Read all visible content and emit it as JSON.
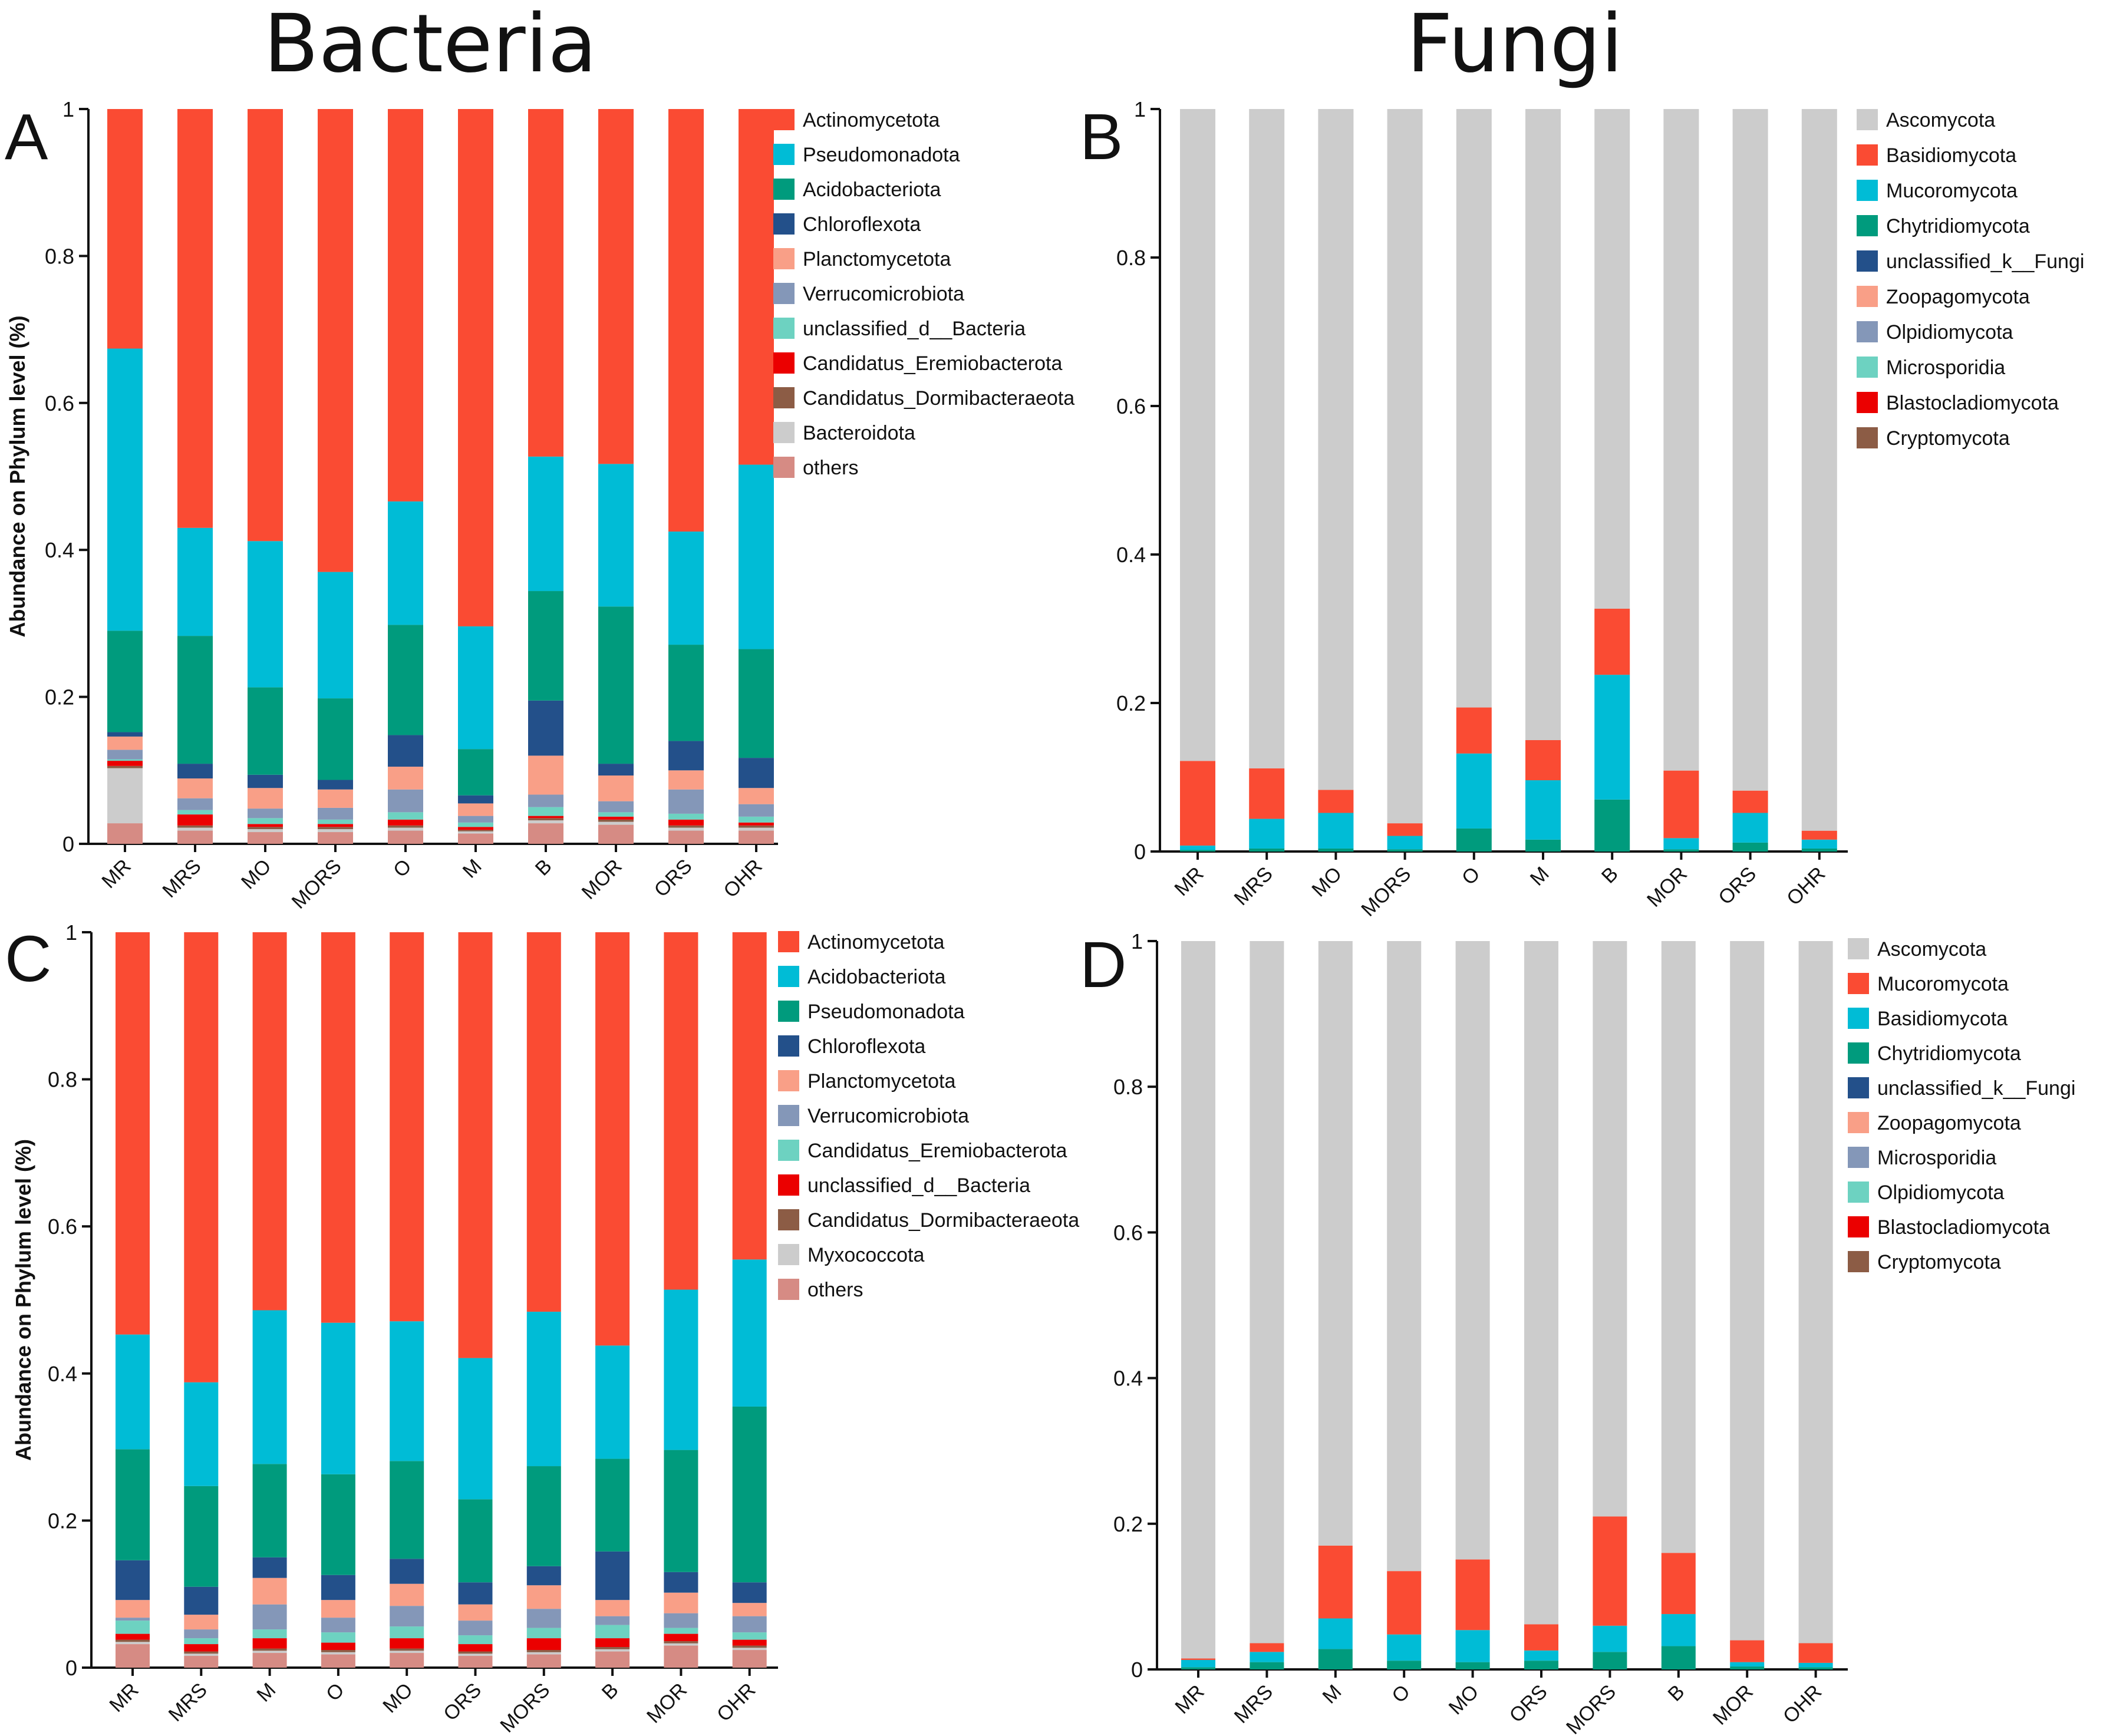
{
  "titles": {
    "left": "Bacteria",
    "right": "Fungi"
  },
  "colors": {
    "Actinomycetota": "#fa4b33",
    "Pseudomonadota_A": "#00bcd6",
    "Acidobacteriota_A": "#009b7d",
    "Chloroflexota": "#23508a",
    "Planctomycetota": "#f99f87",
    "Verrucomicrobiota": "#8497b8",
    "unclassified_d__Bacteria_A": "#6dd2c1",
    "Candidatus_Eremiobacterota_A": "#eb0000",
    "Candidatus_Dormibacteraeota": "#8c5c45",
    "Bacteroidota": "#cccccc",
    "others": "#d68b84",
    "Ascomycota": "#cccccc"
  },
  "chart_data": [
    {
      "panel": "A",
      "type": "bar",
      "stacked": true,
      "ylabel": "Abundance on Phylum level (%)",
      "ylim": [
        0,
        1
      ],
      "yticks": [
        "0",
        "0.2",
        "0.4",
        "0.6",
        "0.8",
        "1"
      ],
      "categories": [
        "MR",
        "MRS",
        "MO",
        "MORS",
        "O",
        "M",
        "B",
        "MOR",
        "ORS",
        "OHR"
      ],
      "legend_position": "right",
      "series": [
        {
          "name": "others",
          "color": "#d68b84",
          "values": [
            0.028,
            0.018,
            0.016,
            0.016,
            0.018,
            0.014,
            0.028,
            0.026,
            0.018,
            0.018
          ]
        },
        {
          "name": "Bacteroidota",
          "color": "#cccccc",
          "values": [
            0.075,
            0.004,
            0.004,
            0.004,
            0.004,
            0.003,
            0.004,
            0.004,
            0.004,
            0.004
          ]
        },
        {
          "name": "Candidatus_Dormibacteraeota",
          "color": "#8c5c45",
          "values": [
            0.003,
            0.003,
            0.003,
            0.003,
            0.003,
            0.002,
            0.003,
            0.003,
            0.003,
            0.003
          ]
        },
        {
          "name": "Candidatus_Eremiobacterota",
          "color": "#eb0000",
          "values": [
            0.007,
            0.015,
            0.004,
            0.004,
            0.008,
            0.004,
            0.003,
            0.004,
            0.008,
            0.004
          ]
        },
        {
          "name": "unclassified_d__Bacteria",
          "color": "#6dd2c1",
          "values": [
            0.002,
            0.006,
            0.008,
            0.006,
            0.01,
            0.006,
            0.012,
            0.006,
            0.008,
            0.008
          ]
        },
        {
          "name": "Verrucomicrobiota",
          "color": "#8497b8",
          "values": [
            0.013,
            0.016,
            0.013,
            0.016,
            0.031,
            0.009,
            0.017,
            0.015,
            0.033,
            0.017
          ]
        },
        {
          "name": "Planctomycetota",
          "color": "#f99f87",
          "values": [
            0.018,
            0.027,
            0.028,
            0.025,
            0.031,
            0.017,
            0.053,
            0.035,
            0.026,
            0.022
          ]
        },
        {
          "name": "Chloroflexota",
          "color": "#23508a",
          "values": [
            0.006,
            0.02,
            0.018,
            0.013,
            0.043,
            0.011,
            0.075,
            0.016,
            0.04,
            0.041
          ]
        },
        {
          "name": "Acidobacteriota",
          "color": "#009b7d",
          "values": [
            0.138,
            0.174,
            0.119,
            0.111,
            0.15,
            0.063,
            0.149,
            0.214,
            0.131,
            0.148
          ]
        },
        {
          "name": "Pseudomonadota",
          "color": "#00bcd6",
          "values": [
            0.384,
            0.147,
            0.199,
            0.172,
            0.168,
            0.167,
            0.183,
            0.194,
            0.154,
            0.251
          ]
        },
        {
          "name": "Actinomycetota",
          "color": "#fa4b33",
          "values": [
            0.326,
            0.57,
            0.588,
            0.63,
            0.534,
            0.704,
            0.473,
            0.483,
            0.575,
            0.484
          ]
        }
      ],
      "legend": [
        "Actinomycetota",
        "Pseudomonadota",
        "Acidobacteriota",
        "Chloroflexota",
        "Planctomycetota",
        "Verrucomicrobiota",
        "unclassified_d__Bacteria",
        "Candidatus_Eremiobacterota",
        "Candidatus_Dormibacteraeota",
        "Bacteroidota",
        "others"
      ],
      "legend_colors": [
        "#fa4b33",
        "#00bcd6",
        "#009b7d",
        "#23508a",
        "#f99f87",
        "#8497b8",
        "#6dd2c1",
        "#eb0000",
        "#8c5c45",
        "#cccccc",
        "#d68b84"
      ]
    },
    {
      "panel": "B",
      "type": "bar",
      "stacked": true,
      "ylabel": "",
      "ylim": [
        0,
        1
      ],
      "yticks": [
        "0",
        "0.2",
        "0.4",
        "0.6",
        "0.8",
        "1"
      ],
      "categories": [
        "MR",
        "MRS",
        "MO",
        "MORS",
        "O",
        "M",
        "B",
        "MOR",
        "ORS",
        "OHR"
      ],
      "legend_position": "right",
      "series": [
        {
          "name": "Chytridiomycota",
          "color": "#009b7d",
          "values": [
            0.002,
            0.004,
            0.004,
            0.003,
            0.031,
            0.016,
            0.07,
            0.003,
            0.012,
            0.004
          ]
        },
        {
          "name": "Mucoromycota",
          "color": "#00bcd6",
          "values": [
            0.006,
            0.04,
            0.048,
            0.018,
            0.101,
            0.08,
            0.168,
            0.015,
            0.04,
            0.012
          ]
        },
        {
          "name": "Basidiomycota",
          "color": "#fa4b33",
          "values": [
            0.114,
            0.068,
            0.031,
            0.017,
            0.062,
            0.054,
            0.089,
            0.091,
            0.03,
            0.012
          ]
        },
        {
          "name": "Ascomycota",
          "color": "#cccccc",
          "values": [
            0.878,
            0.888,
            0.917,
            0.962,
            0.806,
            0.85,
            0.673,
            0.891,
            0.918,
            0.972
          ]
        }
      ],
      "legend": [
        "Ascomycota",
        "Basidiomycota",
        "Mucoromycota",
        "Chytridiomycota",
        "unclassified_k__Fungi",
        "Zoopagomycota",
        "Olpidiomycota",
        "Microsporidia",
        "Blastocladiomycota",
        "Cryptomycota"
      ],
      "legend_colors": [
        "#cccccc",
        "#fa4b33",
        "#00bcd6",
        "#009b7d",
        "#23508a",
        "#f99f87",
        "#8497b8",
        "#6dd2c1",
        "#eb0000",
        "#8c5c45"
      ]
    },
    {
      "panel": "C",
      "type": "bar",
      "stacked": true,
      "ylabel": "Abundance on Phylum level (%)",
      "ylim": [
        0,
        1
      ],
      "yticks": [
        "0",
        "0.2",
        "0.4",
        "0.6",
        "0.8",
        "1"
      ],
      "categories": [
        "MR",
        "MRS",
        "M",
        "O",
        "MO",
        "ORS",
        "MORS",
        "B",
        "MOR",
        "OHR"
      ],
      "legend_position": "right",
      "series": [
        {
          "name": "others",
          "color": "#d68b84",
          "values": [
            0.032,
            0.016,
            0.02,
            0.018,
            0.02,
            0.016,
            0.018,
            0.022,
            0.03,
            0.024
          ]
        },
        {
          "name": "Myxococcota",
          "color": "#cccccc",
          "values": [
            0.003,
            0.003,
            0.003,
            0.003,
            0.003,
            0.003,
            0.003,
            0.003,
            0.003,
            0.003
          ]
        },
        {
          "name": "Candidatus_Dormibacteraeota",
          "color": "#8c5c45",
          "values": [
            0.003,
            0.003,
            0.003,
            0.003,
            0.003,
            0.003,
            0.003,
            0.003,
            0.003,
            0.003
          ]
        },
        {
          "name": "unclassified_d__Bacteria",
          "color": "#eb0000",
          "values": [
            0.008,
            0.01,
            0.014,
            0.01,
            0.014,
            0.01,
            0.016,
            0.012,
            0.01,
            0.008
          ]
        },
        {
          "name": "Candidatus_Eremiobacterota",
          "color": "#6dd2c1",
          "values": [
            0.018,
            0.008,
            0.012,
            0.014,
            0.016,
            0.012,
            0.014,
            0.018,
            0.008,
            0.01
          ]
        },
        {
          "name": "Verrucomicrobiota",
          "color": "#8497b8",
          "values": [
            0.004,
            0.012,
            0.034,
            0.02,
            0.028,
            0.02,
            0.026,
            0.012,
            0.02,
            0.022
          ]
        },
        {
          "name": "Planctomycetota",
          "color": "#f99f87",
          "values": [
            0.024,
            0.02,
            0.036,
            0.024,
            0.03,
            0.022,
            0.032,
            0.022,
            0.028,
            0.018
          ]
        },
        {
          "name": "Chloroflexota",
          "color": "#23508a",
          "values": [
            0.054,
            0.038,
            0.028,
            0.034,
            0.034,
            0.03,
            0.026,
            0.066,
            0.028,
            0.028
          ]
        },
        {
          "name": "Pseudomonadota",
          "color": "#009b7d",
          "values": [
            0.151,
            0.137,
            0.127,
            0.137,
            0.133,
            0.113,
            0.136,
            0.126,
            0.166,
            0.239
          ]
        },
        {
          "name": "Acidobacteriota",
          "color": "#00bcd6",
          "values": [
            0.156,
            0.141,
            0.209,
            0.206,
            0.19,
            0.192,
            0.21,
            0.154,
            0.218,
            0.2
          ]
        },
        {
          "name": "Actinomycetota",
          "color": "#fa4b33",
          "values": [
            0.547,
            0.612,
            0.514,
            0.531,
            0.529,
            0.579,
            0.516,
            0.562,
            0.486,
            0.445
          ]
        }
      ],
      "legend": [
        "Actinomycetota",
        "Acidobacteriota",
        "Pseudomonadota",
        "Chloroflexota",
        "Planctomycetota",
        "Verrucomicrobiota",
        "Candidatus_Eremiobacterota",
        "unclassified_d__Bacteria",
        "Candidatus_Dormibacteraeota",
        "Myxococcota",
        "others"
      ],
      "legend_colors": [
        "#fa4b33",
        "#00bcd6",
        "#009b7d",
        "#23508a",
        "#f99f87",
        "#8497b8",
        "#6dd2c1",
        "#eb0000",
        "#8c5c45",
        "#cccccc",
        "#d68b84"
      ]
    },
    {
      "panel": "D",
      "type": "bar",
      "stacked": true,
      "ylabel": "",
      "ylim": [
        0,
        1
      ],
      "yticks": [
        "0",
        "0.2",
        "0.4",
        "0.6",
        "0.8",
        "1"
      ],
      "categories": [
        "MR",
        "MRS",
        "M",
        "O",
        "MO",
        "ORS",
        "MORS",
        "B",
        "MOR",
        "OHR"
      ],
      "legend_position": "right",
      "series": [
        {
          "name": "Chytridiomycota",
          "color": "#009b7d",
          "values": [
            0.003,
            0.01,
            0.028,
            0.012,
            0.01,
            0.012,
            0.024,
            0.032,
            0.004,
            0.003
          ]
        },
        {
          "name": "Basidiomycota",
          "color": "#00bcd6",
          "values": [
            0.01,
            0.014,
            0.042,
            0.036,
            0.044,
            0.014,
            0.036,
            0.044,
            0.006,
            0.006
          ]
        },
        {
          "name": "Mucoromycota",
          "color": "#fa4b33",
          "values": [
            0.002,
            0.012,
            0.1,
            0.087,
            0.097,
            0.036,
            0.15,
            0.084,
            0.03,
            0.027
          ]
        },
        {
          "name": "Ascomycota",
          "color": "#cccccc",
          "values": [
            0.985,
            0.964,
            0.83,
            0.865,
            0.849,
            0.938,
            0.79,
            0.84,
            0.96,
            0.964
          ]
        }
      ],
      "legend": [
        "Ascomycota",
        "Mucoromycota",
        "Basidiomycota",
        "Chytridiomycota",
        "unclassified_k__Fungi",
        "Zoopagomycota",
        "Microsporidia",
        "Olpidiomycota",
        "Blastocladiomycota",
        "Cryptomycota"
      ],
      "legend_colors": [
        "#cccccc",
        "#fa4b33",
        "#00bcd6",
        "#009b7d",
        "#23508a",
        "#f99f87",
        "#8497b8",
        "#6dd2c1",
        "#eb0000",
        "#8c5c45"
      ]
    }
  ]
}
